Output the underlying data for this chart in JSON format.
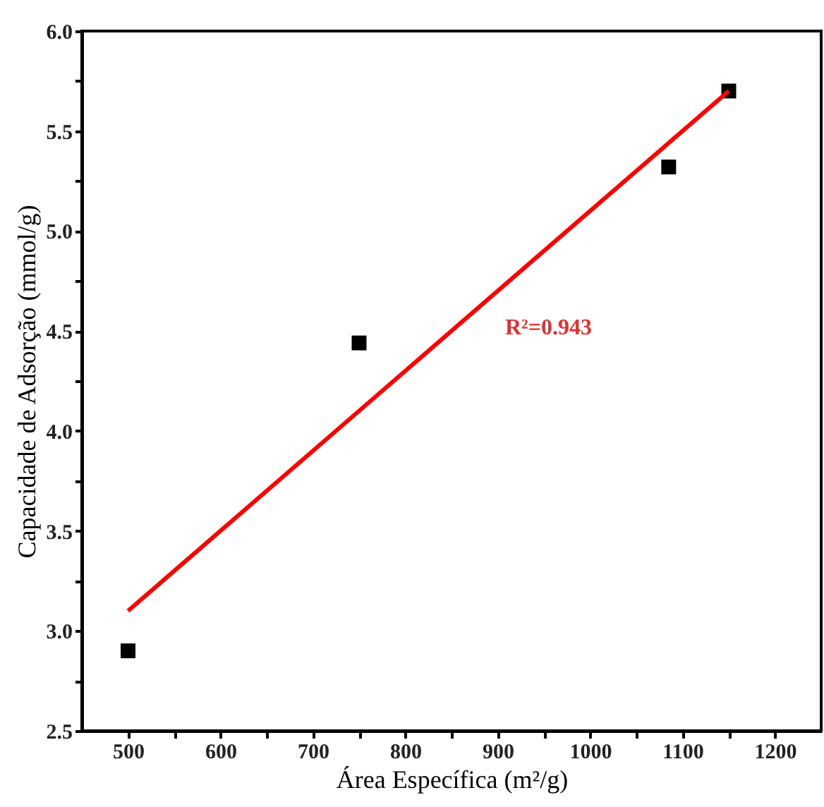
{
  "chart_data": {
    "type": "scatter",
    "xlabel": "Área Específica (m²/g)",
    "ylabel": "Capacidade de Adsorção (mmol/g)",
    "series": [
      {
        "color": "#000000",
        "marker": "square",
        "x": [
          500,
          750,
          1085,
          1150
        ],
        "values": [
          2.9,
          4.44,
          5.32,
          5.7
        ]
      },
      {
        "type": "line",
        "color": "#ff0000",
        "line_style": "solid",
        "x": [
          500,
          1150
        ],
        "values": [
          3.1,
          5.7
        ]
      }
    ],
    "annotations": [
      "R²=0.943"
    ],
    "xlim": [
      450,
      1250
    ],
    "ylim": [
      2.5,
      6.0
    ],
    "xticks": [
      500,
      {
        "value": 550,
        "label": null
      },
      600,
      {
        "value": 650,
        "label": null
      },
      700,
      {
        "value": 750,
        "label": null
      },
      800,
      {
        "value": 850,
        "label": null
      },
      900,
      {
        "value": 950,
        "label": null
      },
      1000,
      {
        "value": 1050,
        "label": null
      },
      1100,
      {
        "value": 1150,
        "label": null
      },
      1200
    ],
    "yticks": [
      {
        "value": 2.5,
        "label": "2.5"
      },
      {
        "value": 2.75,
        "label": null
      },
      {
        "value": 3.0,
        "label": "3.0"
      },
      {
        "value": 3.25,
        "label": null
      },
      {
        "value": 3.5,
        "label": "3.5"
      },
      {
        "value": 3.75,
        "label": null
      },
      {
        "value": 4.0,
        "label": "4.0"
      },
      {
        "value": 4.25,
        "label": null
      },
      {
        "value": 4.5,
        "label": "4.5"
      },
      {
        "value": 4.75,
        "label": null
      },
      {
        "value": 5.0,
        "label": "5.0"
      },
      {
        "value": 5.25,
        "label": null
      },
      {
        "value": 5.5,
        "label": "5.5"
      },
      {
        "value": 5.75,
        "label": null
      },
      {
        "value": 6.0,
        "label": "6.0"
      }
    ],
    "grid": false
  }
}
